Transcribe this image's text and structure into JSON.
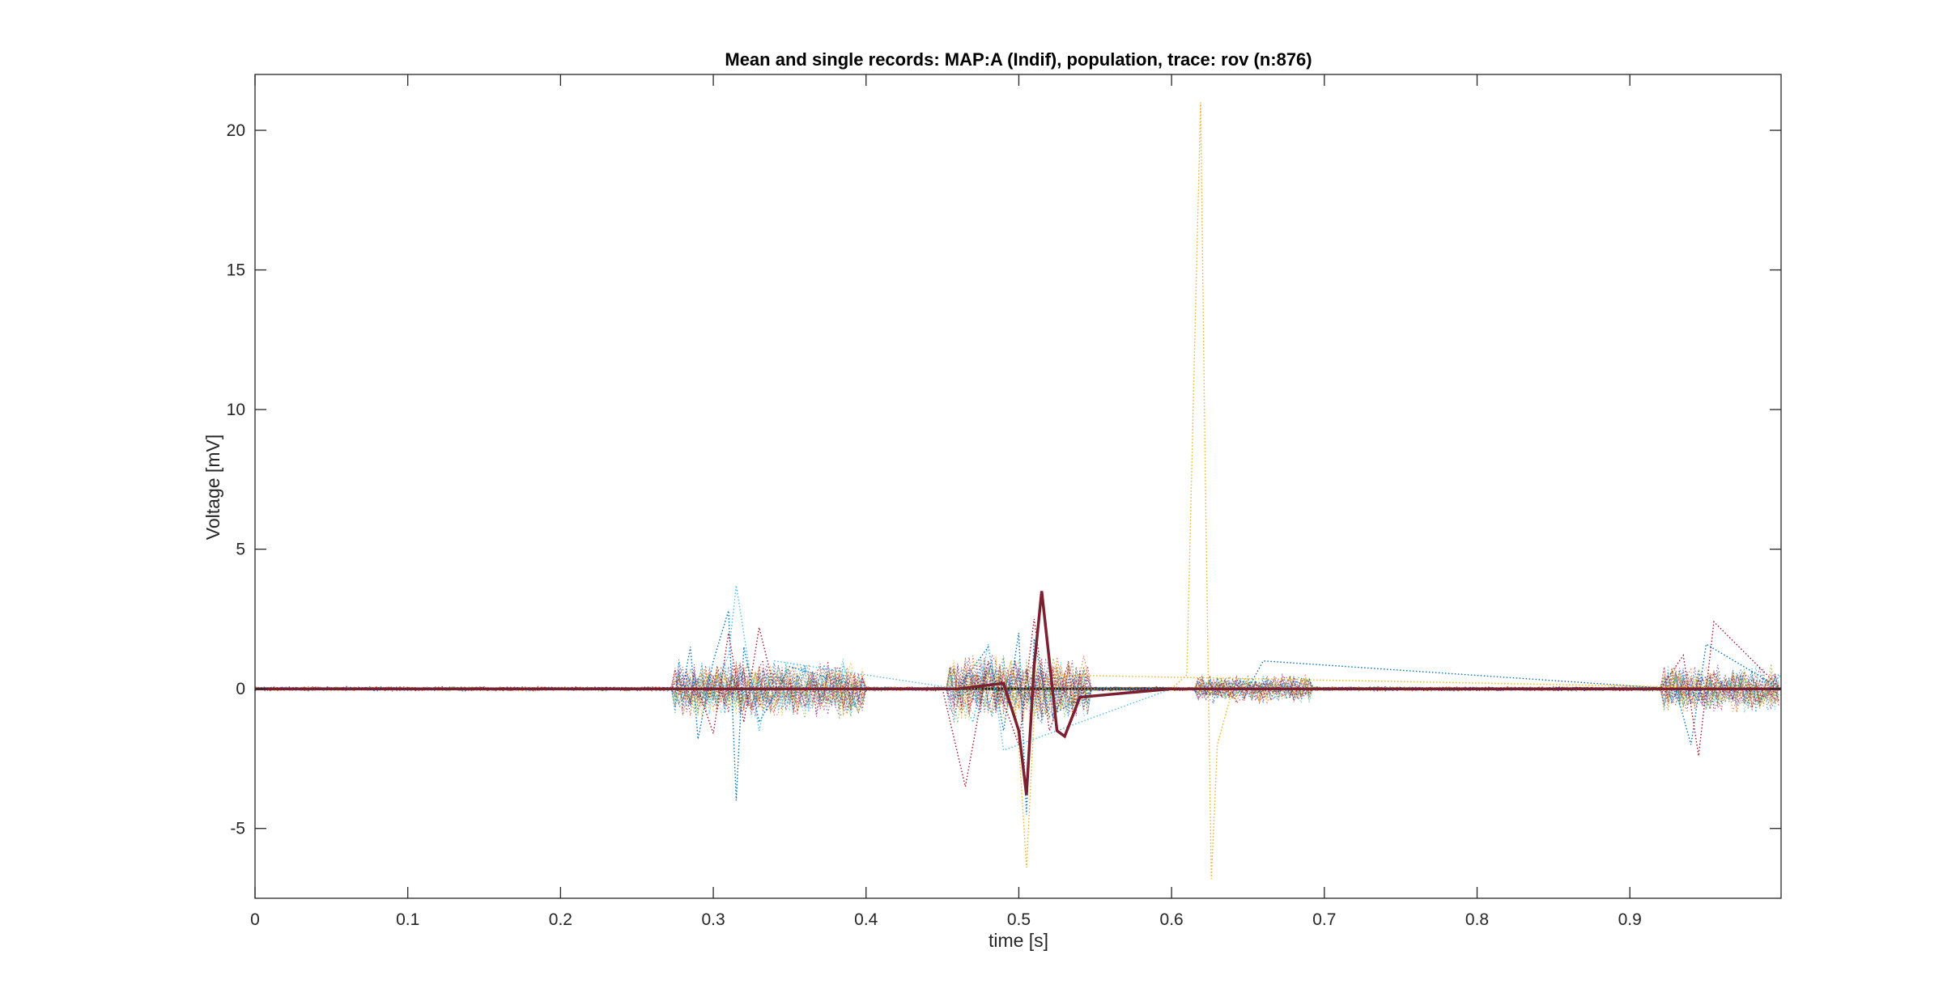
{
  "chart_data": {
    "type": "line",
    "title": "Mean and single records: MAP:A (Indif), population, trace: rov (n:876)",
    "xlabel": "time [s]",
    "ylabel": "Voltage [mV]",
    "xlim": [
      0,
      0.999
    ],
    "ylim": [
      -7.5,
      22
    ],
    "xticks": [
      0,
      0.1,
      0.2,
      0.3,
      0.4,
      0.5,
      0.6,
      0.7,
      0.8,
      0.9
    ],
    "xtick_labels": [
      "0",
      "0.1",
      "0.2",
      "0.3",
      "0.4",
      "0.5",
      "0.6",
      "0.7",
      "0.8",
      "0.9"
    ],
    "yticks": [
      -5,
      0,
      5,
      10,
      15,
      20
    ],
    "ytick_labels": [
      "-5",
      "0",
      "5",
      "10",
      "15",
      "20"
    ],
    "grid": false,
    "legend": "none",
    "n_records": 876,
    "series_colors": [
      "#0072BD",
      "#D95319",
      "#EDB120",
      "#7E2F8E",
      "#77AC30",
      "#4DBEEE",
      "#A2142F"
    ],
    "series": [
      {
        "style": "dotted",
        "color": "#EDB120",
        "x": [
          0,
          0.1,
          0.2,
          0.3,
          0.4,
          0.5,
          0.6,
          0.61,
          0.615,
          0.619,
          0.622,
          0.626,
          0.63,
          0.64,
          0.7,
          0.8,
          0.9,
          0.999
        ],
        "y": [
          0,
          0,
          0,
          0,
          0,
          0,
          0,
          0.5,
          12,
          21,
          8,
          -6.8,
          -2,
          0,
          0,
          0,
          0,
          0
        ]
      },
      {
        "style": "dotted",
        "color": "#0072BD",
        "x": [
          0,
          0.28,
          0.285,
          0.29,
          0.3,
          0.31,
          0.315,
          0.32,
          0.33,
          0.35,
          0.4,
          0.46,
          0.48,
          0.49,
          0.5,
          0.505,
          0.51,
          0.52,
          0.55,
          0.65,
          0.66,
          0.93,
          0.94,
          0.95,
          0.999
        ],
        "y": [
          0,
          0,
          1.5,
          -1.8,
          1,
          2.8,
          -4,
          1.5,
          -1.2,
          0.8,
          0,
          0,
          1.5,
          -1.5,
          2,
          -4.5,
          1.8,
          -1,
          0,
          0,
          1,
          0,
          -2,
          1.6,
          0
        ]
      },
      {
        "style": "dotted",
        "color": "#A2142F",
        "x": [
          0,
          0.29,
          0.3,
          0.31,
          0.32,
          0.33,
          0.34,
          0.45,
          0.465,
          0.48,
          0.5,
          0.51,
          0.52,
          0.53,
          0.6,
          0.92,
          0.935,
          0.945,
          0.955,
          0.999
        ],
        "y": [
          0,
          0,
          -1.6,
          2,
          -1.2,
          2.2,
          0,
          0,
          -3.5,
          1,
          -2,
          2.5,
          -1.5,
          0,
          0,
          0,
          1.2,
          -2.4,
          2.4,
          0
        ]
      },
      {
        "style": "dotted",
        "color": "#EDB120",
        "x": [
          0,
          0.49,
          0.495,
          0.5,
          0.505,
          0.51,
          0.52,
          0.999
        ],
        "y": [
          0,
          0,
          1,
          -2,
          -6.4,
          -1,
          0.5,
          0
        ]
      },
      {
        "style": "dotted",
        "color": "#4DBEEE",
        "x": [
          0,
          0.3,
          0.31,
          0.315,
          0.33,
          0.34,
          0.46,
          0.47,
          0.48,
          0.49,
          0.6,
          0.99,
          0.999
        ],
        "y": [
          0,
          0,
          1.2,
          3.7,
          -1.5,
          1,
          0,
          -1.2,
          1.6,
          -2.2,
          0,
          0,
          0.5
        ]
      },
      {
        "style": "solid",
        "name": "mean",
        "color": "#7a2030",
        "x": [
          0,
          0.3,
          0.46,
          0.49,
          0.5,
          0.505,
          0.51,
          0.515,
          0.52,
          0.525,
          0.53,
          0.54,
          0.6,
          0.999
        ],
        "y": [
          0,
          0,
          0,
          0.2,
          -1.5,
          -3.8,
          0.8,
          3.5,
          1,
          -1.5,
          -1.7,
          -0.3,
          0,
          0
        ]
      }
    ]
  }
}
